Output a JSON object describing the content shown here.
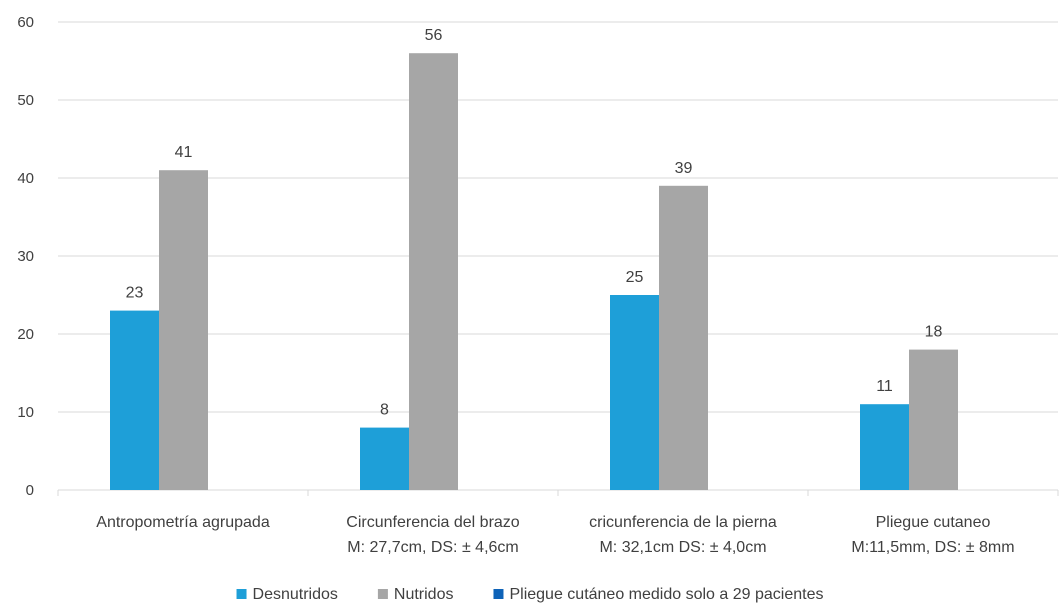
{
  "chart_data": {
    "type": "bar",
    "title": "",
    "xlabel": "",
    "ylabel": "",
    "ylim": [
      0,
      60
    ],
    "yticks": [
      0,
      10,
      20,
      30,
      40,
      50,
      60
    ],
    "grid": true,
    "legend_position": "bottom",
    "categories": [
      [
        "Antropometría agrupada"
      ],
      [
        "Circunferencia del brazo",
        "M: 27,7cm, DS: ± 4,6cm"
      ],
      [
        "cricunferencia de la pierna",
        "M: 32,1cm DS: ± 4,0cm"
      ],
      [
        "Pliegue cutaneo",
        "M:11,5mm, DS: ± 8mm"
      ]
    ],
    "series": [
      {
        "name": "Desnutridos",
        "color": "#1E9FD8",
        "values": [
          23,
          8,
          25,
          11
        ]
      },
      {
        "name": "Nutridos",
        "color": "#A6A6A6",
        "values": [
          41,
          56,
          39,
          18
        ]
      }
    ],
    "legend": [
      {
        "label": "Desnutridos",
        "color": "#1E9FD8"
      },
      {
        "label": "Nutridos",
        "color": "#A6A6A6"
      },
      {
        "label": "Pliegue cutáneo medido solo a 29 pacientes",
        "color": "#0E63B8"
      }
    ]
  }
}
